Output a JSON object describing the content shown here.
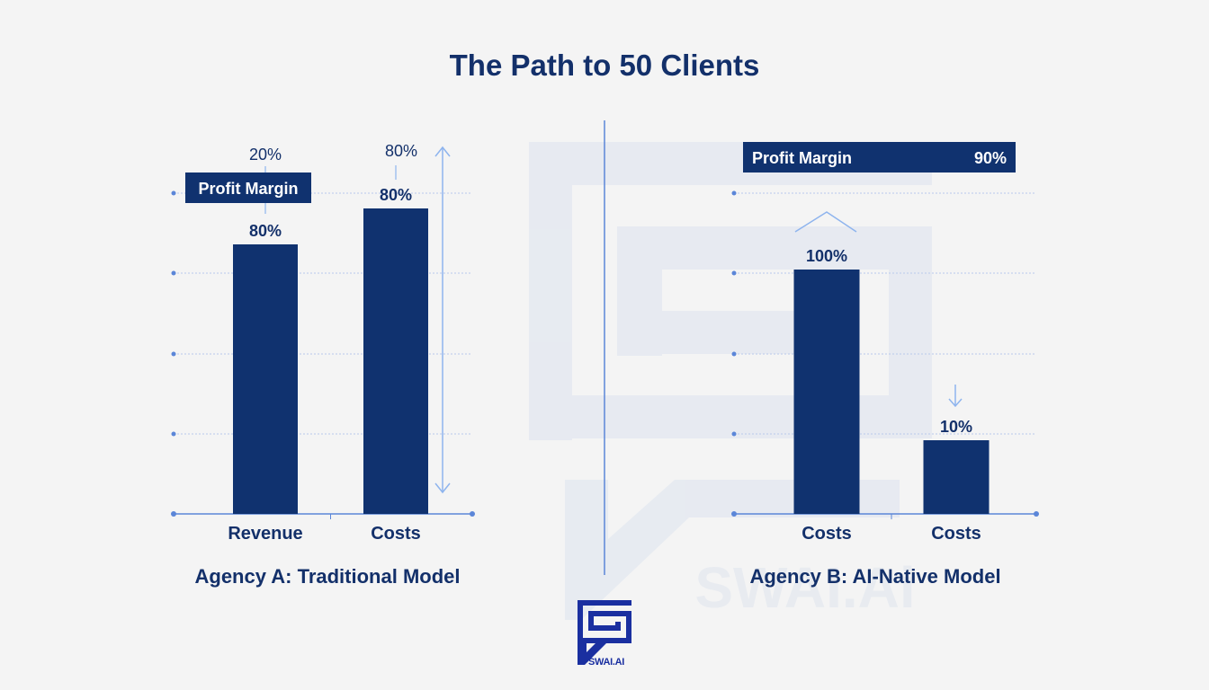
{
  "title": "The Path to 50 Clients",
  "brand": {
    "name": "SWAI.AI",
    "color": "#1a2fa0",
    "watermark_text": "SWAI.Ai"
  },
  "colors": {
    "bar": "#10326f",
    "axis": "#5b86d8",
    "grid": "#b9c9ec",
    "arrow": "#8eb4ee",
    "text": "#13306a"
  },
  "chart_data": [
    {
      "type": "bar",
      "subtitle": "Agency A: Traditional Model",
      "categories": [
        "Revenue",
        "Costs"
      ],
      "values": [
        80,
        80
      ],
      "value_labels": [
        "80%",
        "80%"
      ],
      "ylim": [
        0,
        100
      ],
      "grid": true,
      "legend": "none",
      "annotations": [
        {
          "text": "20%",
          "attach": "Revenue"
        },
        {
          "text": "Profit Margin",
          "type": "box",
          "attach": "Revenue"
        },
        {
          "text": "80%",
          "attach": "Costs",
          "type": "double-arrow"
        }
      ]
    },
    {
      "type": "bar",
      "subtitle": "Agency B: AI-Native Model",
      "categories": [
        "Costs",
        "Costs"
      ],
      "values": [
        100,
        10
      ],
      "value_labels": [
        "100%",
        "10%"
      ],
      "ylim": [
        0,
        100
      ],
      "grid": true,
      "legend": "none",
      "annotations": [
        {
          "text": "Profit Margin",
          "value_text": "90%",
          "type": "box"
        },
        {
          "text": "",
          "type": "up-chevron",
          "attach": "first"
        },
        {
          "text": "",
          "type": "down-arrow",
          "attach": "second"
        }
      ]
    }
  ]
}
